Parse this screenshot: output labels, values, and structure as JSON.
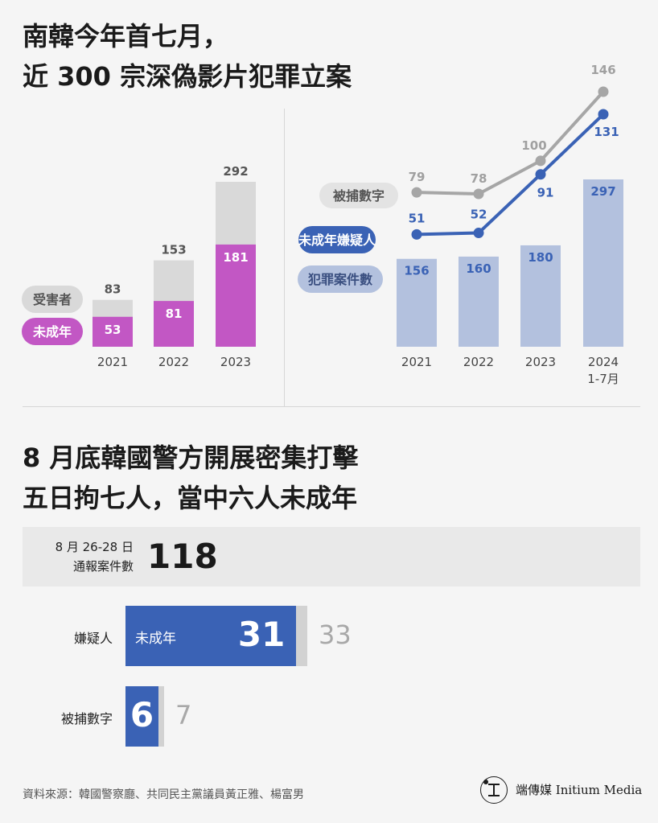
{
  "title_top": [
    "南韓今年首七月，",
    "近 300 宗深偽影片犯罪立案"
  ],
  "title_bottom": [
    "8 月底韓國警方開展密集打擊",
    "五日拘七人，當中六人未成年"
  ],
  "colors": {
    "gray_bar": "#d9d9d9",
    "magenta": "#c257c4",
    "light_blue": "#b3c1de",
    "blue": "#3a62b5",
    "gray_line": "#a6a6a6"
  },
  "chart_data": [
    {
      "type": "bar",
      "categories": [
        "2021",
        "2022",
        "2023"
      ],
      "series": [
        {
          "name": "受害者",
          "values": [
            83,
            153,
            292
          ]
        },
        {
          "name": "未成年",
          "values": [
            53,
            81,
            181
          ]
        }
      ],
      "ylim": [
        0,
        292
      ]
    },
    {
      "type": "bar",
      "categories": [
        "2021",
        "2022",
        "2023",
        "2024\n1-7月"
      ],
      "series": [
        {
          "name": "犯罪案件數",
          "values": [
            156,
            160,
            180,
            297
          ],
          "kind": "bar"
        },
        {
          "name": "被捕數字",
          "values": [
            79,
            78,
            100,
            146
          ],
          "kind": "line"
        },
        {
          "name": "未成年嫌疑人",
          "values": [
            51,
            52,
            91,
            131
          ],
          "kind": "line"
        }
      ]
    },
    {
      "type": "bar",
      "orientation": "horizontal",
      "summary": {
        "label_line1": "8 月 26-28 日",
        "label_line2": "通報案件數",
        "value": 118
      },
      "rows": [
        {
          "label": "嫌疑人",
          "part_label": "未成年",
          "part": 31,
          "total": 33
        },
        {
          "label": "被捕數字",
          "part_label": "",
          "part": 6,
          "total": 7
        }
      ]
    }
  ],
  "footer": {
    "source": "資料來源：韓國警察廳、共同民主黨議員黃正雅、楊富男",
    "logo_text": "端傳媒 Initium Media"
  }
}
